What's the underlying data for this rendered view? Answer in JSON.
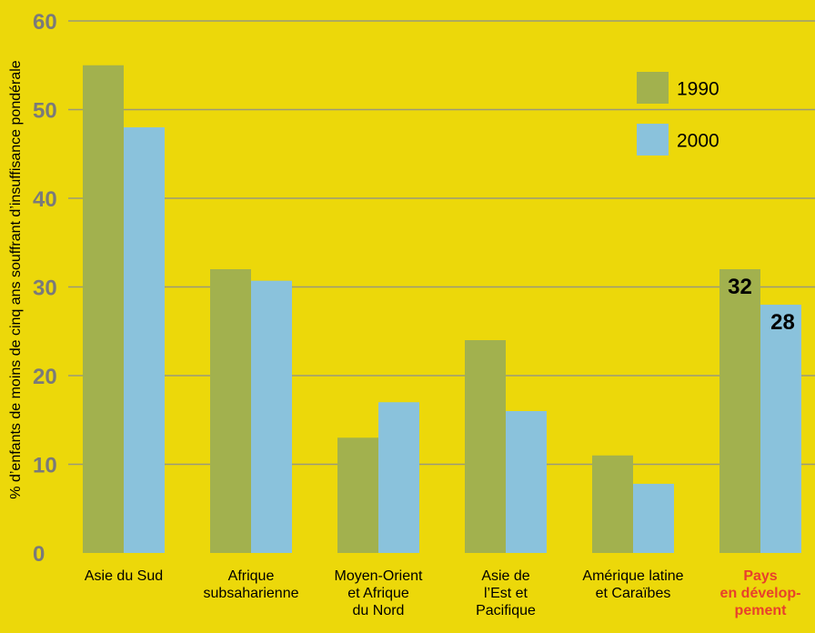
{
  "colors": {
    "background": "#ecd80a",
    "series_1990": "#a2b14e",
    "series_2000": "#8ac2dc",
    "gridline": "#9a9a7a",
    "tick_text": "#7a7a7a",
    "highlight": "#e8402c"
  },
  "chart_data": {
    "type": "bar",
    "ylabel": "% d’enfants de moins de cinq ans souffrant d’insuffisance pondérale",
    "ylim": [
      0,
      60
    ],
    "yticks": [
      "0",
      "10",
      "20",
      "30",
      "40",
      "50",
      "60"
    ],
    "grid": true,
    "legend_position": "top-right",
    "categories": [
      [
        "Asie du Sud"
      ],
      [
        "Afrique",
        "subsaharienne"
      ],
      [
        "Moyen-Orient",
        "et Afrique",
        "du Nord"
      ],
      [
        "Asie de",
        "l’Est et",
        "Pacifique"
      ],
      [
        "Amérique latine",
        "et Caraïbes"
      ],
      [
        "Pays",
        "en dévelop-",
        "pement"
      ]
    ],
    "highlight_category": 5,
    "series": [
      {
        "name": "1990",
        "values": [
          55,
          32,
          13,
          24,
          11,
          32
        ]
      },
      {
        "name": "2000",
        "values": [
          48,
          30.7,
          17,
          16,
          7.8,
          28
        ]
      }
    ],
    "data_labels": [
      {
        "series": 0,
        "category": 5,
        "text": "32"
      },
      {
        "series": 1,
        "category": 5,
        "text": "28"
      }
    ]
  }
}
